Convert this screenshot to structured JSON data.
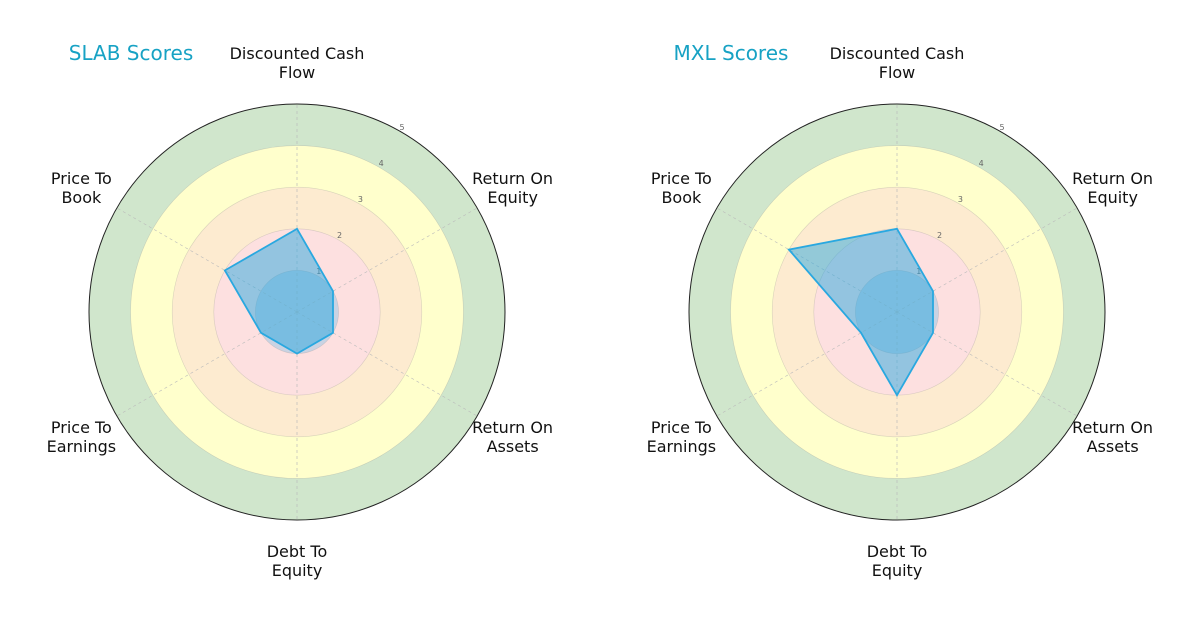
{
  "chart_data": [
    {
      "type": "radar",
      "title": "SLAB Scores",
      "categories": [
        "Discounted Cash\nFlow",
        "Return On\nEquity",
        "Return On\nAssets",
        "Debt To\nEquity",
        "Price To\nEarnings",
        "Price To\nBook"
      ],
      "values": [
        2,
        1,
        1,
        1,
        1,
        2
      ],
      "rlim": [
        0,
        5
      ],
      "rticks": [
        1,
        2,
        3,
        4,
        5
      ],
      "color": "#29a8e0",
      "band_colors": [
        "#c9d3e3",
        "#fde0e0",
        "#fdebd0",
        "#ffffcc",
        "#d0e6cc"
      ]
    },
    {
      "type": "radar",
      "title": "MXL Scores",
      "categories": [
        "Discounted Cash\nFlow",
        "Return On\nEquity",
        "Return On\nAssets",
        "Debt To\nEquity",
        "Price To\nEarnings",
        "Price To\nBook"
      ],
      "values": [
        2,
        1,
        1,
        2,
        1,
        3
      ],
      "rlim": [
        0,
        5
      ],
      "rticks": [
        1,
        2,
        3,
        4,
        5
      ],
      "color": "#29a8e0",
      "band_colors": [
        "#c9d3e3",
        "#fde0e0",
        "#fdebd0",
        "#ffffcc",
        "#d0e6cc"
      ]
    }
  ]
}
